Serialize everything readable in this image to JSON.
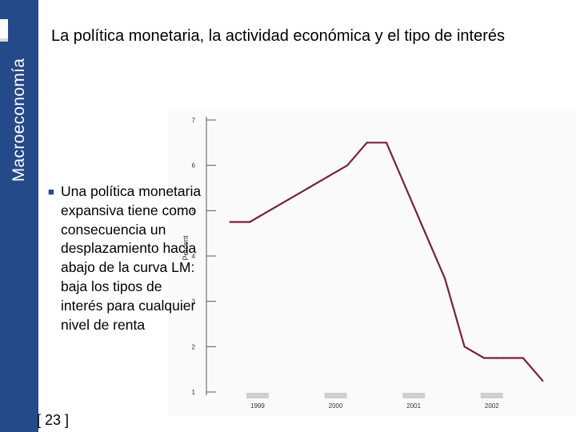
{
  "sidebar": {
    "label": "Macroeconomía",
    "color": "#244a8a"
  },
  "slide": {
    "title": "La política monetaria, la actividad económica y el tipo de interés",
    "bullet": "Una política monetaria expansiva tiene como consecuencia un desplazamiento hacia abajo de la curva LM: baja los tipos de interés para cualquier nivel de renta",
    "bullet_icon": "square-bullet",
    "page_number": "[ 23 ]"
  },
  "chart_data": {
    "type": "line",
    "ylabel": "Percent",
    "ylim": [
      1,
      7
    ],
    "yticks": [
      "1",
      "2",
      "3",
      "4",
      "5",
      "6",
      "7"
    ],
    "xlabels": [
      "1999",
      "2000",
      "2001",
      "2002"
    ],
    "x": [
      1998.65,
      1998.9,
      1999.15,
      1999.4,
      1999.65,
      1999.9,
      2000.15,
      2000.4,
      2000.65,
      2000.9,
      2001.15,
      2001.4,
      2001.65,
      2001.9,
      2002.15,
      2002.4,
      2002.65
    ],
    "series": [
      {
        "values": [
          4.75,
          4.75,
          5.0,
          5.25,
          5.5,
          5.75,
          6.0,
          6.5,
          6.5,
          5.5,
          4.5,
          3.5,
          2.0,
          1.75,
          1.75,
          1.75,
          1.25
        ],
        "color": "#7a1f3d"
      }
    ],
    "grid": false
  }
}
